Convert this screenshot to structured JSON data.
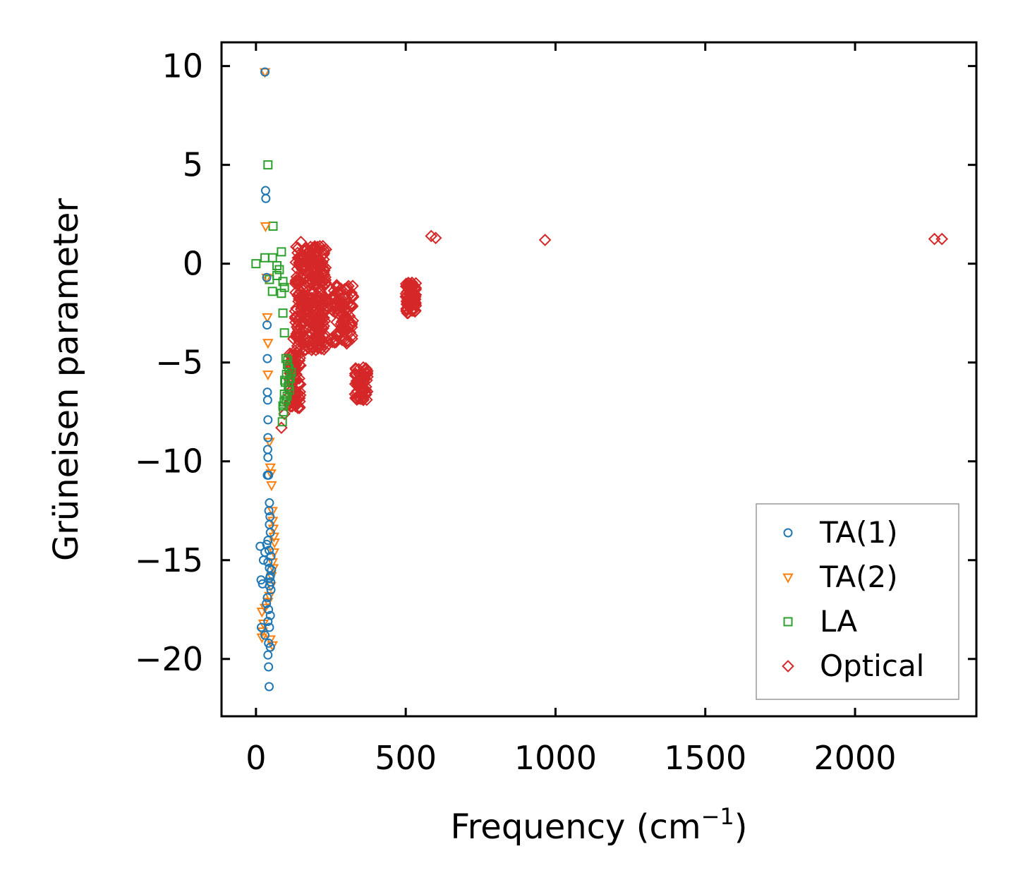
{
  "chart_data": {
    "type": "scatter",
    "title": "",
    "xlabel": "Frequency (cm",
    "xlabel_sup": "−1",
    "xlabel_close": ")",
    "ylabel": "Grüneisen parameter",
    "xlim": [
      -115,
      2405
    ],
    "ylim": [
      -22.9,
      11.2
    ],
    "xticks": [
      0,
      500,
      1000,
      1500,
      2000
    ],
    "xtick_labels": [
      "0",
      "500",
      "1000",
      "1500",
      "2000"
    ],
    "yticks": [
      10,
      5,
      0,
      -5,
      -10,
      -15,
      -20
    ],
    "ytick_labels": [
      "10",
      "5",
      "0",
      "−5",
      "−10",
      "−15",
      "−20"
    ],
    "grid": false,
    "legend_position": "bottom-right",
    "series": [
      {
        "name": "TA(1)",
        "marker": "circle",
        "color": "#1f77b4",
        "points": [
          [
            30,
            9.7
          ],
          [
            32,
            3.7
          ],
          [
            33,
            3.3
          ],
          [
            36,
            -0.7
          ],
          [
            37,
            -3.1
          ],
          [
            38,
            -4.8
          ],
          [
            38,
            -6.5
          ],
          [
            39,
            -6.9
          ],
          [
            40,
            -7.9
          ],
          [
            40,
            -8.8
          ],
          [
            39,
            -9.4
          ],
          [
            40,
            -9.8
          ],
          [
            38,
            -10.7
          ],
          [
            42,
            -10.7
          ],
          [
            45,
            -12.1
          ],
          [
            43,
            -12.5
          ],
          [
            47,
            -12.8
          ],
          [
            45,
            -13.2
          ],
          [
            48,
            -13.6
          ],
          [
            40,
            -14.0
          ],
          [
            36,
            -14.2
          ],
          [
            14,
            -14.3
          ],
          [
            30,
            -14.6
          ],
          [
            50,
            -14.8
          ],
          [
            25,
            -15.0
          ],
          [
            40,
            -15.1
          ],
          [
            45,
            -15.4
          ],
          [
            52,
            -15.5
          ],
          [
            48,
            -15.8
          ],
          [
            17,
            -16.0
          ],
          [
            22,
            -16.2
          ],
          [
            45,
            -16.3
          ],
          [
            50,
            -16.5
          ],
          [
            38,
            -16.9
          ],
          [
            35,
            -17.2
          ],
          [
            42,
            -17.5
          ],
          [
            48,
            -17.8
          ],
          [
            40,
            -18.1
          ],
          [
            45,
            -18.4
          ],
          [
            18,
            -18.4
          ],
          [
            30,
            -18.8
          ],
          [
            42,
            -19.2
          ],
          [
            48,
            -19.4
          ],
          [
            40,
            -19.8
          ],
          [
            42,
            -20.4
          ],
          [
            44,
            -21.4
          ],
          [
            46,
            -15.9
          ],
          [
            49,
            -16.1
          ],
          [
            44,
            -14.5
          ]
        ]
      },
      {
        "name": "TA(2)",
        "marker": "triangle-down",
        "color": "#ff7f0e",
        "points": [
          [
            30,
            9.7
          ],
          [
            32,
            1.9
          ],
          [
            36,
            -0.7
          ],
          [
            38,
            -2.7
          ],
          [
            40,
            -4.0
          ],
          [
            40,
            -5.6
          ],
          [
            45,
            -9.0
          ],
          [
            48,
            -10.3
          ],
          [
            50,
            -10.6
          ],
          [
            52,
            -11.2
          ],
          [
            55,
            -12.5
          ],
          [
            56,
            -13.0
          ],
          [
            58,
            -13.4
          ],
          [
            60,
            -13.8
          ],
          [
            62,
            -14.1
          ],
          [
            60,
            -14.6
          ],
          [
            55,
            -15.1
          ],
          [
            58,
            -15.4
          ],
          [
            52,
            -15.8
          ],
          [
            50,
            -16.3
          ],
          [
            45,
            -16.8
          ],
          [
            40,
            -17.1
          ],
          [
            30,
            -17.4
          ],
          [
            20,
            -17.6
          ],
          [
            25,
            -18.2
          ],
          [
            22,
            -18.6
          ],
          [
            48,
            -19.0
          ],
          [
            55,
            -19.3
          ],
          [
            20,
            -18.9
          ]
        ]
      },
      {
        "name": "LA",
        "marker": "square",
        "color": "#2ca02c",
        "points": [
          [
            40,
            5.0
          ],
          [
            57,
            1.9
          ],
          [
            0,
            0.0
          ],
          [
            30,
            0.3
          ],
          [
            55,
            0.3
          ],
          [
            70,
            -0.1
          ],
          [
            85,
            0.6
          ],
          [
            78,
            -0.3
          ],
          [
            70,
            -0.6
          ],
          [
            45,
            -0.8
          ],
          [
            90,
            -0.9
          ],
          [
            95,
            -1.2
          ],
          [
            55,
            -1.4
          ],
          [
            85,
            -1.5
          ],
          [
            90,
            -2.5
          ],
          [
            95,
            -3.5
          ],
          [
            100,
            -4.8
          ],
          [
            105,
            -5.1
          ],
          [
            110,
            -5.3
          ],
          [
            102,
            -5.6
          ],
          [
            115,
            -5.8
          ],
          [
            98,
            -6.0
          ],
          [
            108,
            -6.2
          ],
          [
            112,
            -6.4
          ],
          [
            95,
            -6.6
          ],
          [
            100,
            -6.9
          ],
          [
            90,
            -7.2
          ],
          [
            92,
            -7.5
          ],
          [
            88,
            -8.0
          ],
          [
            118,
            -5.5
          ],
          [
            106,
            -4.9
          ],
          [
            96,
            -5.9
          ],
          [
            104,
            -6.7
          ],
          [
            94,
            -7.0
          ],
          [
            110,
            -6.0
          ]
        ]
      },
      {
        "name": "Optical",
        "marker": "diamond",
        "color": "#d62728",
        "points": [
          [
            585,
            1.4
          ],
          [
            600,
            1.3
          ],
          [
            965,
            1.2
          ],
          [
            2265,
            1.25
          ],
          [
            2290,
            1.25
          ],
          [
            150,
            1.1
          ],
          [
            170,
            0.5
          ],
          [
            190,
            0.8
          ],
          [
            175,
            0.1
          ],
          [
            160,
            -0.3
          ],
          [
            195,
            -0.5
          ],
          [
            180,
            -1.0
          ],
          [
            155,
            -1.3
          ],
          [
            200,
            -1.6
          ],
          [
            175,
            -2.0
          ],
          [
            150,
            -2.3
          ],
          [
            210,
            -2.4
          ],
          [
            165,
            -2.7
          ],
          [
            185,
            -3.0
          ],
          [
            140,
            -3.3
          ],
          [
            125,
            -3.8
          ],
          [
            130,
            -4.4
          ],
          [
            145,
            -4.9
          ],
          [
            135,
            -5.6
          ],
          [
            145,
            -7.3
          ],
          [
            85,
            -8.3
          ],
          [
            95,
            -7.6
          ],
          [
            110,
            -7.1
          ],
          [
            270,
            -1.2
          ],
          [
            260,
            -1.6
          ],
          [
            280,
            -2.0
          ],
          [
            290,
            -2.6
          ],
          [
            300,
            -3.3
          ],
          [
            305,
            -3.9
          ],
          [
            320,
            -2.1
          ],
          [
            510,
            -1.0
          ],
          [
            520,
            -1.5
          ],
          [
            515,
            -2.0
          ],
          [
            505,
            -2.5
          ],
          [
            340,
            -5.9
          ],
          [
            350,
            -6.4
          ],
          [
            360,
            -5.6
          ],
          [
            335,
            -6.8
          ],
          [
            370,
            -5.9
          ],
          [
            230,
            -2.9
          ]
        ],
        "clusters": [
          {
            "x": [
              130,
              235
            ],
            "y": [
              -4.4,
              0.9
            ],
            "n": 340
          },
          {
            "x": [
              112,
              150
            ],
            "y": [
              -7.3,
              -4.3
            ],
            "n": 70
          },
          {
            "x": [
              255,
              325
            ],
            "y": [
              -4.1,
              -1.0
            ],
            "n": 90
          },
          {
            "x": [
              500,
              535
            ],
            "y": [
              -2.5,
              -0.9
            ],
            "n": 80
          },
          {
            "x": [
              330,
              375
            ],
            "y": [
              -6.9,
              -5.2
            ],
            "n": 60
          }
        ]
      }
    ]
  }
}
